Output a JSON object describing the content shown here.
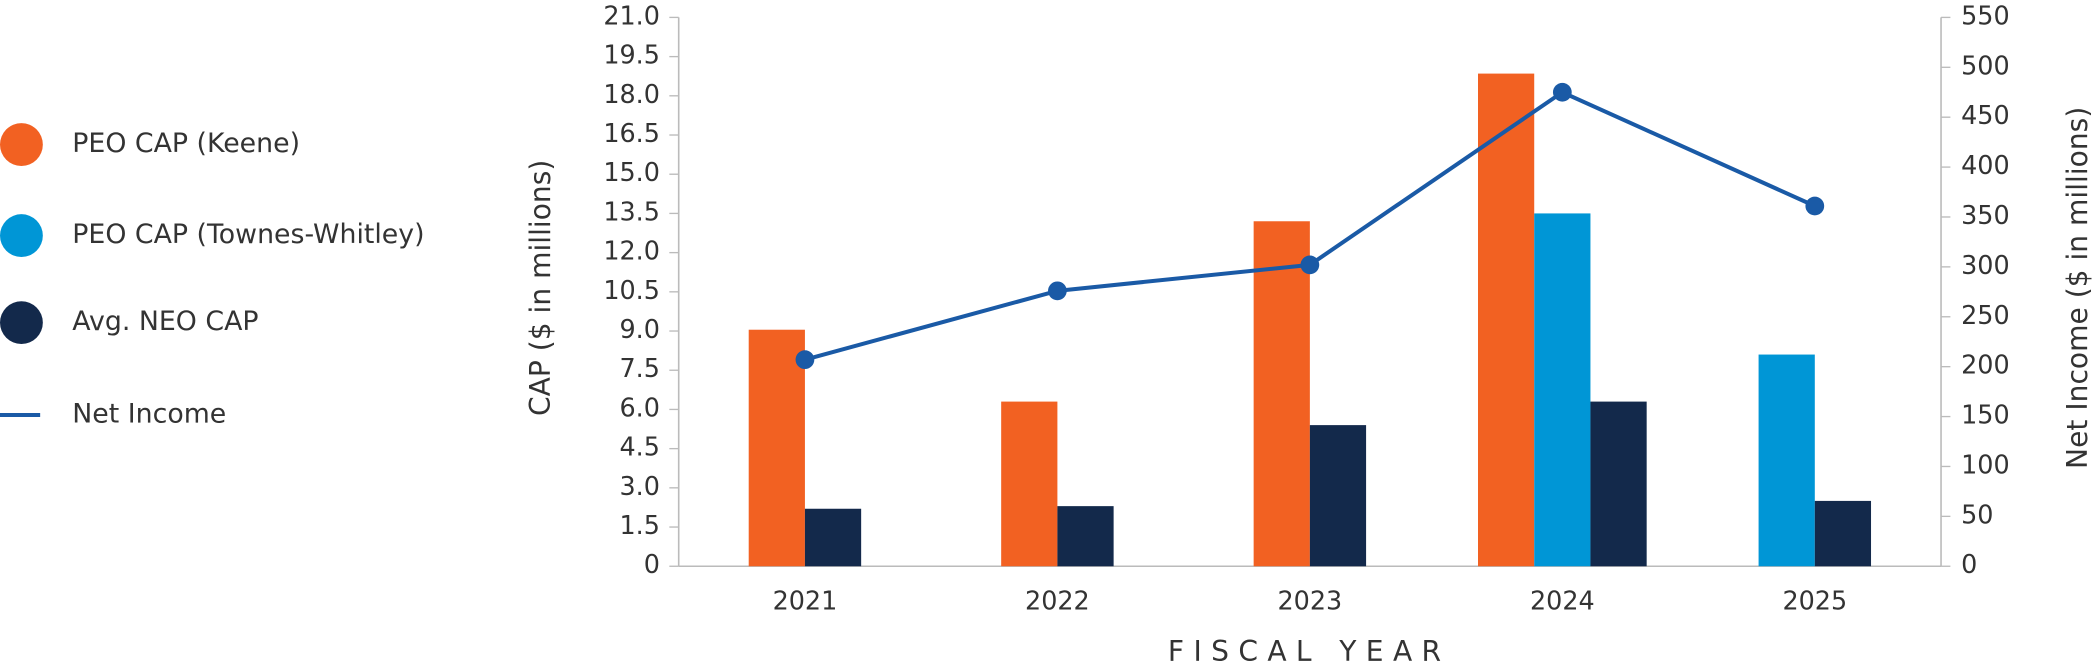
{
  "chart_data": {
    "type": "bar",
    "xlabel": "FISCAL YEAR",
    "ylabel": "CAP ($ in millions)",
    "y2label": "Net Income ($ in millions)",
    "categories": [
      "2021",
      "2022",
      "2023",
      "2024",
      "2025"
    ],
    "series": [
      {
        "name": "PEO CAP (Keene)",
        "color": "#f26122",
        "values": [
          9.05,
          6.3,
          13.2,
          18.85,
          null
        ]
      },
      {
        "name": "PEO CAP (Townes-Whitley)",
        "color": "#0096d6",
        "values": [
          null,
          null,
          null,
          13.5,
          8.1
        ]
      },
      {
        "name": "Avg. NEO CAP",
        "color": "#13294b",
        "values": [
          2.2,
          2.3,
          5.4,
          6.3,
          2.5
        ]
      },
      {
        "name": "Net Income",
        "type": "line",
        "axis": "y2",
        "color": "#1a5aa6",
        "values": [
          207,
          276,
          302,
          475,
          361
        ]
      }
    ],
    "ylim": [
      0,
      21
    ],
    "yticks": [
      0,
      1.5,
      {
        "value": 3,
        "label": "3.0"
      },
      4.5,
      {
        "value": 6,
        "label": "6.0"
      },
      7.5,
      {
        "value": 9,
        "label": "9.0"
      },
      10.5,
      {
        "value": 12,
        "label": "12.0"
      },
      13.5,
      {
        "value": 15,
        "label": "15.0"
      },
      16.5,
      {
        "value": 18,
        "label": "18.0"
      },
      19.5,
      {
        "value": 21,
        "label": "21.0"
      }
    ],
    "y2lim": [
      0,
      550
    ],
    "y2ticks": [
      0,
      50,
      100,
      150,
      200,
      250,
      300,
      350,
      400,
      450,
      500,
      550
    ],
    "legend": "left",
    "grid": false
  }
}
